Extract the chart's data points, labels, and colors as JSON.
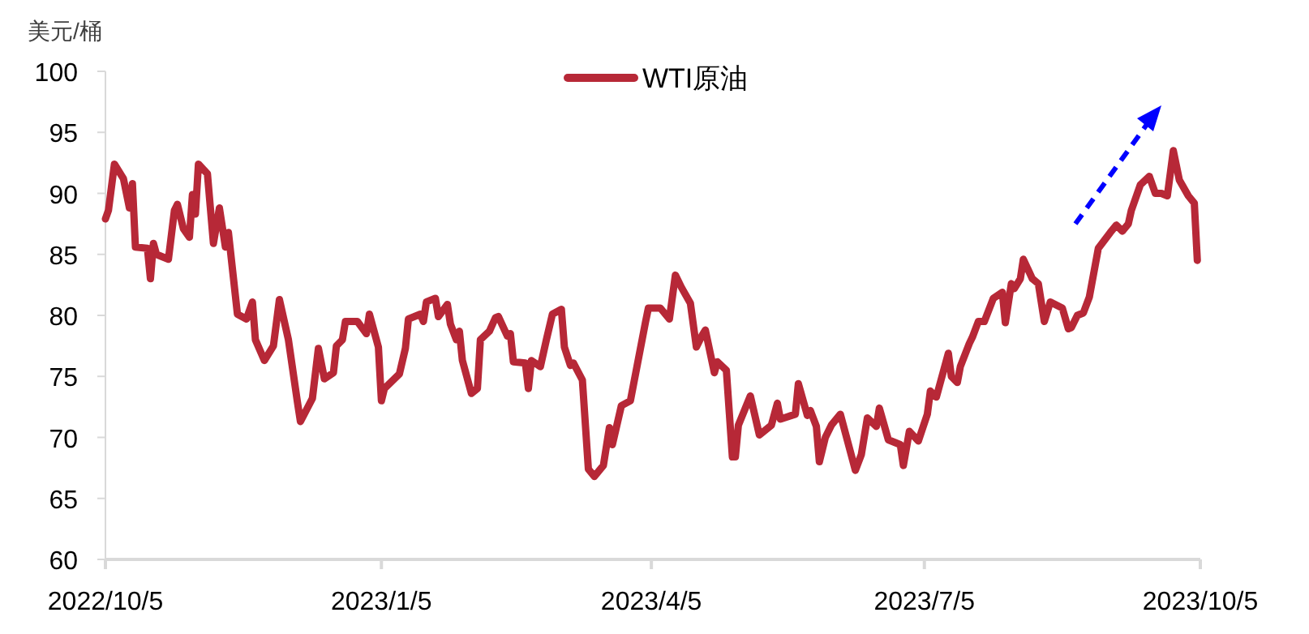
{
  "chart_data": {
    "type": "line",
    "ylabel": "美元/桶",
    "x": [
      "2022-10-05",
      "2022-10-06",
      "2022-10-08",
      "2022-10-11",
      "2022-10-13",
      "2022-10-14",
      "2022-10-15",
      "2022-10-19",
      "2022-10-20",
      "2022-10-21",
      "2022-10-22",
      "2022-10-26",
      "2022-10-28",
      "2022-10-29",
      "2022-10-31",
      "2022-11-02",
      "2022-11-03",
      "2022-11-04",
      "2022-11-05",
      "2022-11-08",
      "2022-11-10",
      "2022-11-12",
      "2022-11-14",
      "2022-11-15",
      "2022-11-18",
      "2022-11-21",
      "2022-11-23",
      "2022-11-24",
      "2022-11-27",
      "2022-11-30",
      "2022-12-02",
      "2022-12-05",
      "2022-12-08",
      "2022-12-09",
      "2022-12-13",
      "2022-12-15",
      "2022-12-17",
      "2022-12-20",
      "2022-12-21",
      "2022-12-23",
      "2022-12-24",
      "2022-12-28",
      "2022-12-31",
      "2023-01-01",
      "2023-01-04",
      "2023-01-05",
      "2023-01-06",
      "2023-01-11",
      "2023-01-13",
      "2023-01-14",
      "2023-01-18",
      "2023-01-19",
      "2023-01-20",
      "2023-01-23",
      "2023-01-24",
      "2023-01-27",
      "2023-01-28",
      "2023-01-30",
      "2023-01-31",
      "2023-02-01",
      "2023-02-04",
      "2023-02-06",
      "2023-02-07",
      "2023-02-10",
      "2023-02-12",
      "2023-02-13",
      "2023-02-16",
      "2023-02-17",
      "2023-02-18",
      "2023-02-22",
      "2023-02-23",
      "2023-02-24",
      "2023-02-27",
      "2023-03-01",
      "2023-03-03",
      "2023-03-06",
      "2023-03-07",
      "2023-03-09",
      "2023-03-10",
      "2023-03-13",
      "2023-03-15",
      "2023-03-17",
      "2023-03-20",
      "2023-03-22",
      "2023-03-23",
      "2023-03-26",
      "2023-03-29",
      "2023-04-03",
      "2023-04-04",
      "2023-04-08",
      "2023-04-11",
      "2023-04-13",
      "2023-04-15",
      "2023-04-18",
      "2023-04-20",
      "2023-04-22",
      "2023-04-23",
      "2023-04-26",
      "2023-04-27",
      "2023-04-30",
      "2023-05-02",
      "2023-05-03",
      "2023-05-04",
      "2023-05-08",
      "2023-05-11",
      "2023-05-15",
      "2023-05-17",
      "2023-05-18",
      "2023-05-23",
      "2023-05-24",
      "2023-05-27",
      "2023-05-28",
      "2023-05-30",
      "2023-05-31",
      "2023-06-02",
      "2023-06-04",
      "2023-06-07",
      "2023-06-12",
      "2023-06-14",
      "2023-06-16",
      "2023-06-19",
      "2023-06-20",
      "2023-06-23",
      "2023-06-27",
      "2023-06-28",
      "2023-06-30",
      "2023-07-03",
      "2023-07-06",
      "2023-07-07",
      "2023-07-09",
      "2023-07-13",
      "2023-07-14",
      "2023-07-16",
      "2023-07-17",
      "2023-07-20",
      "2023-07-21",
      "2023-07-23",
      "2023-07-25",
      "2023-07-28",
      "2023-07-31",
      "2023-08-01",
      "2023-08-03",
      "2023-08-04",
      "2023-08-06",
      "2023-08-07",
      "2023-08-10",
      "2023-08-12",
      "2023-08-14",
      "2023-08-16",
      "2023-08-20",
      "2023-08-22",
      "2023-08-23",
      "2023-08-25",
      "2023-08-27",
      "2023-08-29",
      "2023-09-01",
      "2023-09-05",
      "2023-09-07",
      "2023-09-09",
      "2023-09-11",
      "2023-09-12",
      "2023-09-15",
      "2023-09-18",
      "2023-09-20",
      "2023-09-22",
      "2023-09-24",
      "2023-09-26",
      "2023-09-28",
      "2023-10-01",
      "2023-10-03",
      "2023-10-04"
    ],
    "series": [
      {
        "name": "WTI原油",
        "color": "#b72837",
        "values": [
          87.9,
          88.6,
          92.4,
          91.2,
          88.8,
          90.8,
          85.6,
          85.5,
          83.0,
          85.9,
          85.0,
          84.6,
          88.6,
          89.1,
          87.1,
          86.4,
          89.9,
          88.3,
          92.4,
          91.6,
          85.9,
          88.8,
          85.6,
          86.8,
          80.1,
          79.7,
          81.1,
          78.0,
          76.3,
          77.5,
          81.3,
          78.0,
          72.9,
          71.3,
          73.2,
          77.3,
          74.8,
          75.3,
          77.5,
          78.0,
          79.5,
          79.5,
          78.5,
          80.1,
          77.4,
          73.0,
          74.0,
          75.2,
          77.3,
          79.7,
          80.1,
          79.5,
          81.1,
          81.4,
          79.9,
          80.9,
          79.3,
          78.0,
          78.7,
          76.3,
          73.6,
          74.0,
          78.0,
          78.7,
          79.8,
          79.9,
          78.3,
          78.5,
          76.2,
          76.1,
          74.0,
          76.3,
          75.8,
          78.0,
          80.1,
          80.5,
          77.4,
          75.9,
          76.1,
          74.7,
          67.4,
          66.8,
          67.7,
          70.8,
          69.4,
          72.6,
          73.0,
          79.4,
          80.6,
          80.6,
          79.7,
          83.3,
          82.3,
          81.0,
          77.4,
          78.4,
          78.8,
          75.3,
          76.2,
          75.5,
          68.4,
          68.4,
          71.0,
          73.4,
          70.2,
          71.0,
          72.8,
          71.5,
          71.9,
          74.4,
          71.8,
          72.2,
          70.9,
          68.0,
          70.0,
          71.0,
          71.9,
          67.3,
          68.6,
          71.6,
          70.9,
          72.4,
          69.8,
          69.4,
          67.7,
          70.5,
          69.7,
          71.9,
          73.8,
          73.3,
          76.9,
          75.0,
          74.5,
          75.8,
          77.7,
          78.2,
          79.5,
          79.5,
          81.4,
          81.9,
          79.4,
          82.6,
          82.2,
          83.0,
          84.6,
          83.0,
          82.6,
          79.5,
          81.1,
          80.6,
          78.9,
          79.0,
          80.0,
          80.2,
          81.5,
          85.5,
          86.8,
          87.4,
          86.9,
          87.5,
          88.6,
          90.7,
          91.4,
          90.0,
          90.0,
          89.8,
          93.5,
          91.1,
          89.8,
          89.2,
          84.5
        ]
      }
    ],
    "xlim": [
      "2022-10-05",
      "2023-10-05"
    ],
    "xticks": [
      {
        "value": "2022-10-05",
        "label": "2022/10/5"
      },
      {
        "value": "2023-01-05",
        "label": "2023/1/5"
      },
      {
        "value": "2023-04-05",
        "label": "2023/4/5"
      },
      {
        "value": "2023-07-05",
        "label": "2023/7/5"
      },
      {
        "value": "2023-10-05",
        "label": "2023/10/5"
      }
    ],
    "ylim": [
      60,
      100
    ],
    "yticks": [
      60,
      65,
      70,
      75,
      80,
      85,
      90,
      95,
      100
    ],
    "legend": "top",
    "grid": false,
    "line_style": "solid"
  }
}
